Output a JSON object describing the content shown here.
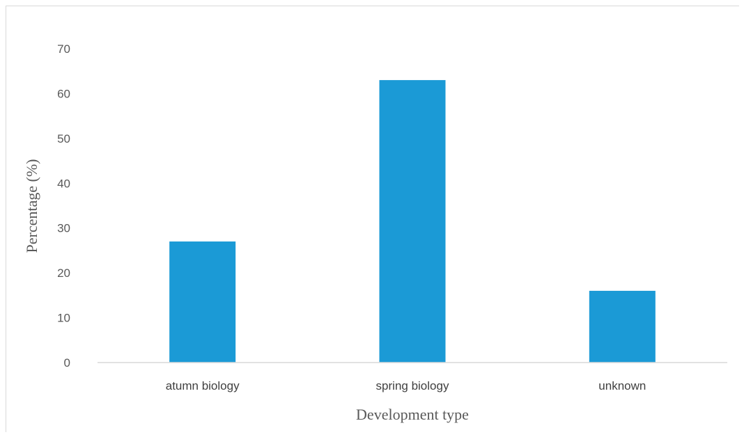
{
  "chart_data": {
    "type": "bar",
    "categories": [
      "atumn biology",
      "spring biology",
      "unknown"
    ],
    "values": [
      27,
      63,
      16
    ],
    "title": "",
    "xlabel": "Development type",
    "ylabel": "Percentage (%)",
    "ylim": [
      0,
      70
    ],
    "yticks": [
      0,
      10,
      20,
      30,
      40,
      50,
      60,
      70
    ],
    "grid": false,
    "legend": "none",
    "bar_color": "#1b9ad6",
    "axis_color": "#d9d9d9"
  }
}
